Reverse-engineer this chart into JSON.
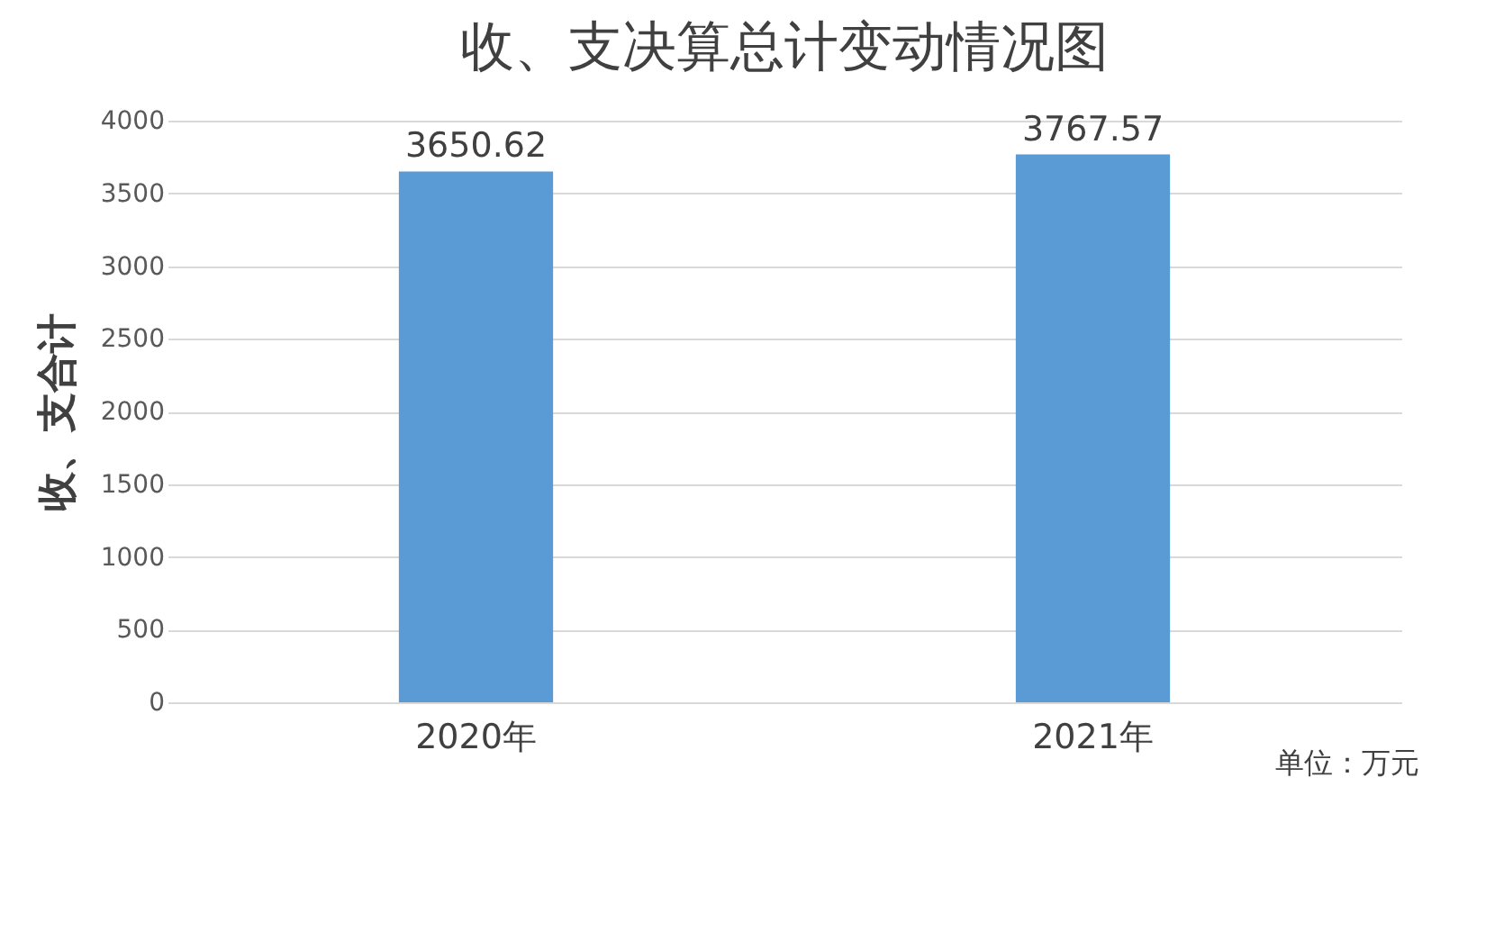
{
  "chart_data": {
    "type": "bar",
    "title": "收、支决算总计变动情况图",
    "ylabel": "收、支合计",
    "categories": [
      "2020年",
      "2021年"
    ],
    "values": [
      3650.62,
      3767.57
    ],
    "color": "#5b9bd5",
    "data_labels": true,
    "ylim": [
      0,
      4000
    ],
    "yticks": [
      0,
      500,
      1000,
      1500,
      2000,
      2500,
      3000,
      3500,
      4000
    ],
    "grid": "y",
    "annotations": [
      "单位：万元"
    ]
  }
}
